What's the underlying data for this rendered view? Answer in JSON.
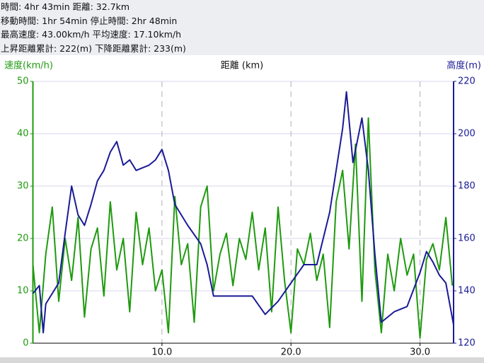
{
  "summary": [
    "時間: 4hr 43min 距離: 32.7km",
    "移動時間: 1hr 54min 停止時間: 2hr 48min",
    "最高速度: 43.00km/h 平均速度: 17.10km/h",
    "上昇距離累計: 222(m) 下降距離累計: 233(m)"
  ],
  "chart_data": {
    "type": "line",
    "ylabel": "速度(km/h)",
    "xlabel": "距離 (km)",
    "y2label": "高度(m)",
    "xlim": [
      0,
      32.6
    ],
    "xticks": [
      {
        "value": 10,
        "label": "10.0"
      },
      {
        "value": 20,
        "label": "20.0"
      },
      {
        "value": 30,
        "label": "30.0"
      }
    ],
    "ylim": [
      0,
      50
    ],
    "yticks": [
      0,
      10,
      20,
      30,
      40,
      50
    ],
    "y2lim": [
      120,
      220
    ],
    "y2ticks": [
      120,
      140,
      160,
      180,
      200,
      220
    ],
    "grid": true,
    "series": [
      {
        "name": "速度",
        "color": "#1f9a0f",
        "axis": "y",
        "x": [
          0,
          0.5,
          1,
          1.5,
          2,
          2.5,
          3,
          3.5,
          4,
          4.5,
          5,
          5.5,
          6,
          6.5,
          7,
          7.5,
          8,
          8.5,
          9,
          9.5,
          10,
          10.5,
          11,
          11.5,
          12,
          12.5,
          13,
          13.5,
          14,
          14.5,
          15,
          15.5,
          16,
          16.5,
          17,
          17.5,
          18,
          18.5,
          19,
          19.5,
          20,
          20.5,
          21,
          21.5,
          22,
          22.5,
          23,
          23.5,
          24,
          24.5,
          25,
          25.5,
          26,
          26.5,
          27,
          27.5,
          28,
          28.5,
          29,
          29.5,
          30,
          30.5,
          31,
          31.5,
          32,
          32.5
        ],
        "values": [
          15,
          2,
          17,
          26,
          8,
          20,
          12,
          24,
          5,
          18,
          22,
          9,
          27,
          14,
          20,
          6,
          25,
          15,
          22,
          10,
          14,
          2,
          28,
          15,
          19,
          4,
          26,
          30,
          10,
          17,
          21,
          11,
          20,
          16,
          25,
          14,
          22,
          6,
          26,
          12,
          2,
          18,
          15,
          21,
          12,
          17,
          3,
          27,
          33,
          18,
          38,
          8,
          43,
          14,
          2,
          17,
          10,
          20,
          13,
          17,
          1,
          16,
          19,
          14,
          24,
          11
        ]
      },
      {
        "name": "高度",
        "color": "#1a1a96",
        "axis": "y2",
        "x": [
          0,
          0.5,
          0.8,
          1,
          2,
          2.5,
          3,
          3.5,
          4,
          4.5,
          5,
          5.5,
          6,
          6.5,
          7,
          7.5,
          8,
          9,
          9.5,
          10,
          10.5,
          11,
          12,
          13,
          13.5,
          14,
          15,
          16,
          17,
          18,
          19,
          20,
          21,
          22,
          23,
          24,
          24.3,
          24.8,
          25.5,
          26,
          26.5,
          27,
          28,
          29,
          30,
          30.5,
          31,
          31.5,
          32,
          32.6
        ],
        "values": [
          139,
          142,
          124,
          135,
          143,
          162,
          180,
          169,
          165,
          173,
          182,
          186,
          193,
          197,
          188,
          190,
          186,
          188,
          190,
          194,
          186,
          173,
          165,
          158,
          150,
          138,
          138,
          138,
          138,
          131,
          136,
          143,
          150,
          150,
          170,
          202,
          216,
          189,
          206,
          186,
          154,
          128,
          132,
          134,
          147,
          155,
          151,
          146,
          143,
          127
        ]
      }
    ]
  }
}
